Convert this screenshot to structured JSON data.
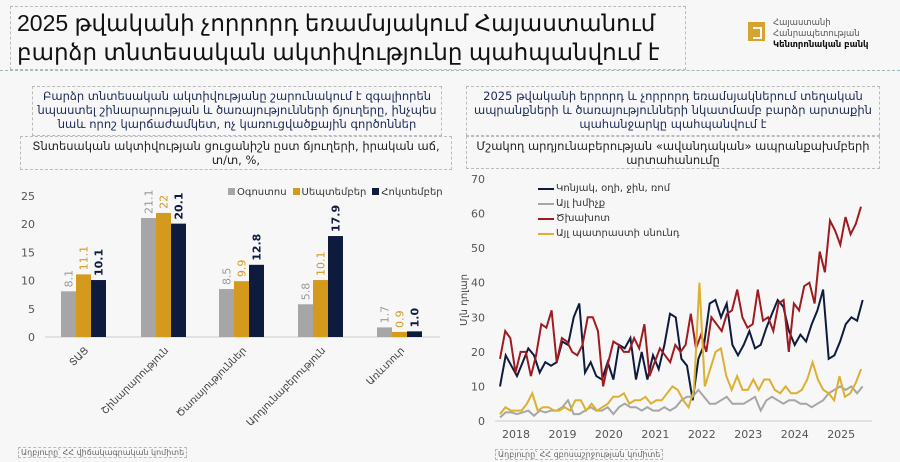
{
  "title": "2025 թվականի չորրորդ եռամսյակում Հայաստանում բարձր տնտեսական ակտիվությունը պահպանվում է",
  "logo": {
    "line1": "Հայաստանի",
    "line2": "Հանրապետության",
    "line3": "Կենտրոնական բանկ"
  },
  "left": {
    "headline": "Բարձր տնտեսական ակտիվությանը շարունակում է զգալիորեն նպաստել շինարարության և ծառայությունների ճյուղերը, ինչպես նաև որոշ կարճաժամկետ, ոչ կառուցվածքային գործոններ",
    "subtitle": "Տնտեսական ակտիվության ցուցանիշն ըստ ճյուղերի, իրական աճ, տ/տ, %,",
    "source": "Աղբյուրը՝ ՀՀ վիճակագրական կոմիտե"
  },
  "right": {
    "headline": "2025 թվականի երրորդ և չորրորդ եռամսյակներում տեղական ապրանքների և ծառայությունների նկատմամբ բարձր արտաքին պահանջարկը պահպանվում է",
    "subtitle": "Մշակող արդյունաբերության «ավանդական» ապրանքախմբերի արտահանումը",
    "source": "Աղբյուրը՝ ՀՀ զբոսաշրջության կոմիտե"
  },
  "chart_data": [
    {
      "type": "bar",
      "categories": [
        "ՏԱՑ",
        "Շինարարություն",
        "Ծառայություններ",
        "Արդյունաբերություն",
        "Առևտուր"
      ],
      "series": [
        {
          "name": "Օգոստոս",
          "color": "#a6a6a6",
          "values": [
            8.1,
            21.1,
            8.5,
            5.8,
            1.7
          ]
        },
        {
          "name": "Սեպտեմբեր",
          "color": "#d49a1e",
          "values": [
            11.1,
            22,
            9.9,
            10.1,
            0.9
          ]
        },
        {
          "name": "Հոկտեմբեր",
          "color": "#0f1b3d",
          "values": [
            10.1,
            20.1,
            12.8,
            17.9,
            1.0
          ]
        }
      ],
      "ylim": [
        0,
        25
      ],
      "yticks": [
        0,
        5,
        10,
        15,
        20,
        25
      ],
      "legend": "top-right"
    },
    {
      "type": "line",
      "ylabel": "Մլն դոլար",
      "ylim": [
        0,
        70
      ],
      "yticks": [
        0,
        10,
        20,
        30,
        40,
        50,
        60,
        70
      ],
      "xticks": [
        "2018",
        "2019",
        "2020",
        "2021",
        "2022",
        "2023",
        "2024",
        "2025"
      ],
      "xrange": [
        2018,
        2025.9
      ],
      "legend": "top-left",
      "series": [
        {
          "name": "Կոնյակ, օղի, ջին, ռոմ",
          "color": "#0f1b3d",
          "values": [
            10,
            19,
            16,
            13,
            17,
            21,
            19,
            14,
            17,
            16,
            17,
            23,
            22,
            30,
            34,
            14,
            17,
            13,
            12,
            17,
            12,
            22,
            21,
            24,
            12,
            20,
            12,
            19,
            15,
            22,
            31,
            30,
            18,
            16,
            6,
            18,
            22,
            34,
            35,
            30,
            34,
            22,
            19,
            22,
            26,
            21,
            22,
            27,
            31,
            35,
            33,
            26,
            22,
            25,
            23,
            28,
            32,
            38,
            18,
            19,
            23,
            28,
            30,
            29,
            35
          ],
          "start": 2018.0,
          "step": 0.122
        },
        {
          "name": "Այլ խմիչք",
          "color": "#a6a6a6",
          "values": [
            1,
            2.5,
            2.5,
            2,
            2.5,
            3,
            1.5,
            3,
            2.5,
            3,
            3,
            4,
            6,
            2,
            2,
            3,
            4,
            3,
            3,
            4,
            2,
            4,
            5,
            4,
            4,
            3,
            4,
            3,
            3,
            4,
            3,
            4,
            6,
            7,
            7,
            9,
            7,
            5,
            5,
            6,
            7,
            5,
            5,
            5,
            6,
            7,
            3,
            6,
            7,
            6,
            5,
            6,
            6,
            5,
            5,
            4,
            5,
            6,
            8,
            9,
            10,
            9,
            10,
            8,
            10
          ],
          "start": 2018.0,
          "step": 0.122
        },
        {
          "name": "Ծխախոտ",
          "color": "#9e1b22",
          "values": [
            18,
            26,
            24,
            14,
            20,
            20,
            13,
            19,
            28,
            27,
            32,
            17,
            24,
            23,
            20,
            19,
            22,
            30,
            30,
            26,
            10,
            17,
            23,
            22,
            20,
            20,
            24,
            21,
            28,
            13,
            17,
            21,
            19,
            17,
            22,
            20,
            22,
            31,
            21,
            25,
            20,
            30,
            28,
            26,
            31,
            32,
            38,
            30,
            27,
            28,
            38,
            29,
            30,
            26,
            34,
            35,
            20,
            34,
            32,
            39,
            40,
            34,
            49,
            43,
            58,
            55,
            51,
            59,
            54,
            57,
            62
          ],
          "start": 2018.0,
          "step": 0.111
        },
        {
          "name": "Այլ պատրաստի սնունդ",
          "color": "#dcb030",
          "values": [
            2,
            4,
            3,
            3,
            3,
            5,
            8,
            3,
            4,
            4,
            3,
            3,
            4,
            3,
            6,
            6,
            3,
            5,
            3,
            4,
            5,
            7,
            7,
            8,
            5,
            6,
            6,
            7,
            5,
            6,
            6,
            8,
            10,
            9,
            6,
            4,
            9,
            40,
            10,
            15,
            20,
            21,
            13,
            9,
            13,
            9,
            9,
            12,
            9,
            12,
            12,
            9,
            8,
            10,
            8,
            8,
            9,
            12,
            17,
            12,
            9,
            8,
            6,
            13,
            7,
            8,
            11,
            15
          ],
          "start": 2018.0,
          "step": 0.116
        }
      ]
    }
  ]
}
